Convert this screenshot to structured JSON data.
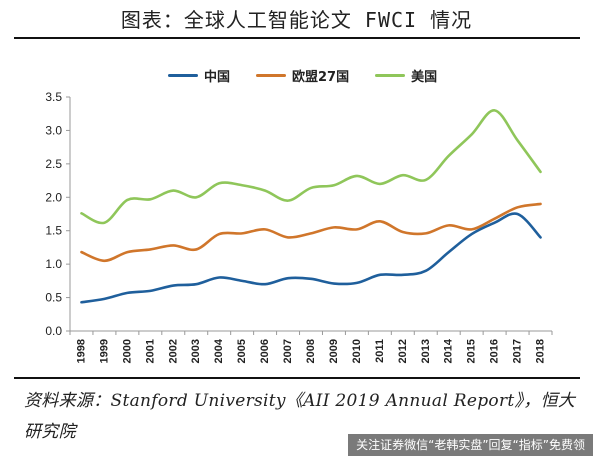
{
  "header": {
    "title": "图表：全球人工智能论文 FWCI 情况"
  },
  "source": {
    "text": "资料来源：Stanford University《AII 2019 Annual Report》，恒大研究院"
  },
  "watermark": {
    "text": "关注证券微信“老韩实盘”回复“指标”免费领"
  },
  "colors": {
    "china": "#1f5f9c",
    "eu": "#d0762b",
    "us": "#8fc65a",
    "axis": "#999999",
    "text": "#222222"
  },
  "chart_data": {
    "type": "line",
    "x": [
      "1998",
      "1999",
      "2000",
      "2001",
      "2002",
      "2003",
      "2004",
      "2005",
      "2006",
      "2007",
      "2008",
      "2009",
      "2010",
      "2011",
      "2012",
      "2013",
      "2014",
      "2015",
      "2016",
      "2017",
      "2018"
    ],
    "series": [
      {
        "name": "中国",
        "color": "#1f5f9c",
        "values": [
          0.43,
          0.48,
          0.57,
          0.6,
          0.68,
          0.7,
          0.8,
          0.75,
          0.7,
          0.79,
          0.78,
          0.71,
          0.72,
          0.84,
          0.84,
          0.9,
          1.18,
          1.45,
          1.62,
          1.75,
          1.4
        ]
      },
      {
        "name": "欧盟27国",
        "color": "#d0762b",
        "values": [
          1.18,
          1.05,
          1.18,
          1.22,
          1.28,
          1.22,
          1.45,
          1.46,
          1.52,
          1.4,
          1.46,
          1.55,
          1.52,
          1.64,
          1.48,
          1.46,
          1.58,
          1.52,
          1.68,
          1.85,
          1.9
        ]
      },
      {
        "name": "美国",
        "color": "#8fc65a",
        "values": [
          1.76,
          1.62,
          1.96,
          1.97,
          2.1,
          2.0,
          2.21,
          2.18,
          2.1,
          1.95,
          2.14,
          2.18,
          2.32,
          2.2,
          2.33,
          2.26,
          2.62,
          2.94,
          3.3,
          2.85,
          2.38
        ]
      }
    ],
    "y_ticks": [
      "0.0",
      "0.5",
      "1.0",
      "1.5",
      "2.0",
      "2.5",
      "3.0",
      "3.5"
    ],
    "ylim": [
      0,
      3.5
    ],
    "legend_position": "top",
    "grid": false
  }
}
